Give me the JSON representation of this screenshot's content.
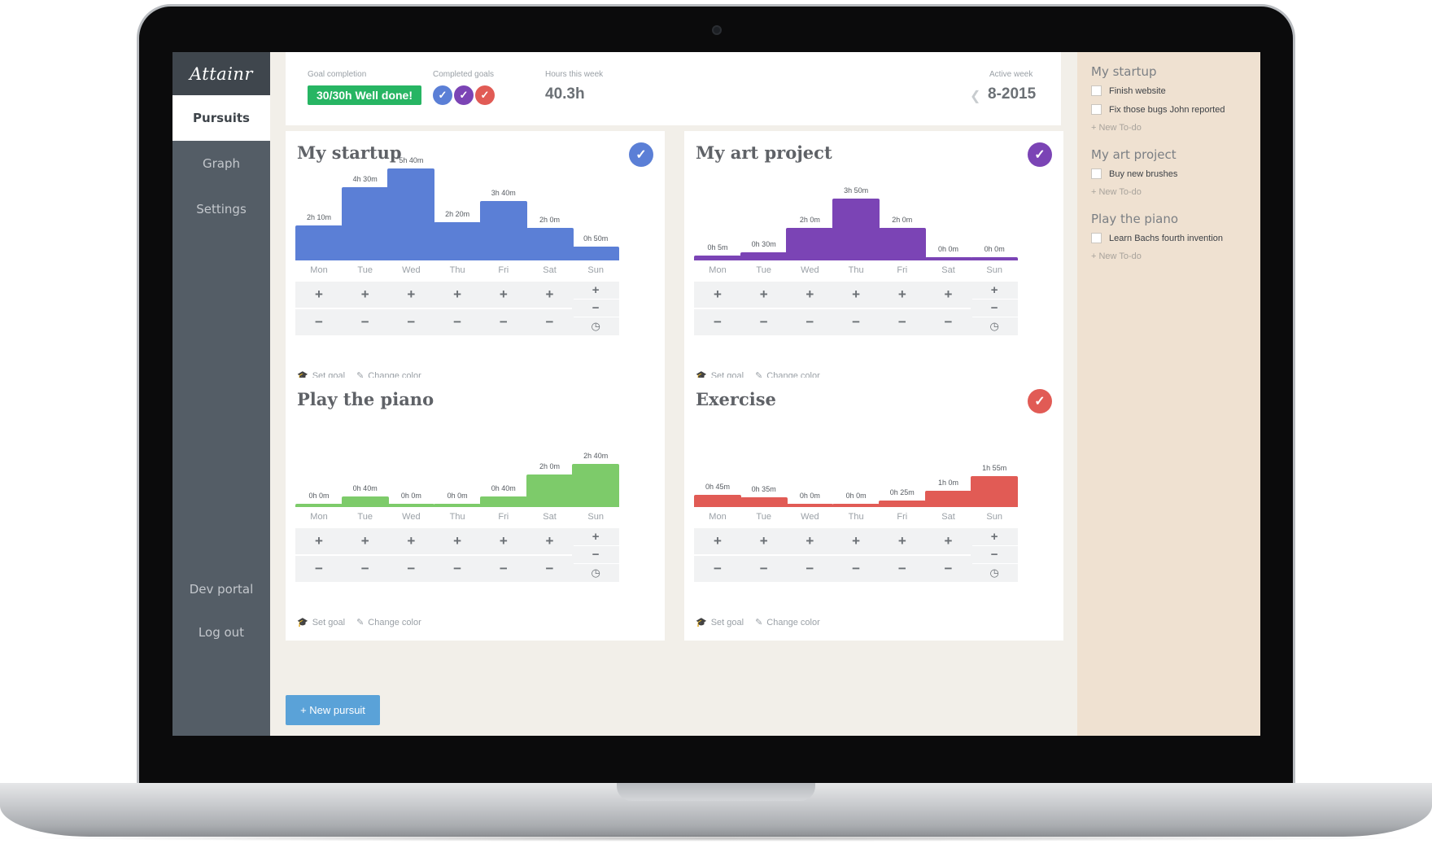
{
  "app": {
    "logo": "Attainr"
  },
  "sidebar": {
    "items": [
      {
        "label": "Pursuits",
        "active": true
      },
      {
        "label": "Graph",
        "active": false
      },
      {
        "label": "Settings",
        "active": false
      }
    ],
    "bottom": [
      {
        "label": "Dev portal"
      },
      {
        "label": "Log out"
      }
    ]
  },
  "header": {
    "goal_label": "Goal completion",
    "goal_badge": "30/30h Well done!",
    "completed_label": "Completed goals",
    "completed_colors": [
      "#5b7fd6",
      "#7b44b5",
      "#e15b55"
    ],
    "hours_label": "Hours this week",
    "hours_value": "40.3h",
    "week_label": "Active week",
    "week_value": "8-2015",
    "week_prev_icon": "chevron-left-icon"
  },
  "pursuits": [
    {
      "title": "My startup",
      "color": "#5b7fd6",
      "completed": true,
      "days": [
        "Mon",
        "Tue",
        "Wed",
        "Thu",
        "Fri",
        "Sat",
        "Sun"
      ],
      "labels": [
        "2h 10m",
        "4h 30m",
        "5h 40m",
        "2h 20m",
        "3h 40m",
        "2h 0m",
        "0h 50m"
      ],
      "minutes": [
        130,
        270,
        340,
        140,
        220,
        120,
        50
      ]
    },
    {
      "title": "My art project",
      "color": "#7b44b5",
      "completed": true,
      "days": [
        "Mon",
        "Tue",
        "Wed",
        "Thu",
        "Fri",
        "Sat",
        "Sun"
      ],
      "labels": [
        "0h 5m",
        "0h 30m",
        "2h 0m",
        "3h 50m",
        "2h 0m",
        "0h 0m",
        "0h 0m"
      ],
      "minutes": [
        5,
        30,
        120,
        230,
        120,
        0,
        0
      ]
    },
    {
      "title": "Play the piano",
      "color": "#7dcb6a",
      "completed": false,
      "days": [
        "Mon",
        "Tue",
        "Wed",
        "Thu",
        "Fri",
        "Sat",
        "Sun"
      ],
      "labels": [
        "0h 0m",
        "0h 40m",
        "0h 0m",
        "0h 0m",
        "0h 40m",
        "2h 0m",
        "2h 40m"
      ],
      "minutes": [
        0,
        40,
        0,
        0,
        40,
        120,
        160
      ]
    },
    {
      "title": "Exercise",
      "color": "#e15b55",
      "completed": true,
      "days": [
        "Mon",
        "Tue",
        "Wed",
        "Thu",
        "Fri",
        "Sat",
        "Sun"
      ],
      "labels": [
        "0h 45m",
        "0h 35m",
        "0h 0m",
        "0h 0m",
        "0h 25m",
        "1h 0m",
        "1h 55m"
      ],
      "minutes": [
        45,
        35,
        0,
        0,
        25,
        60,
        115
      ]
    }
  ],
  "card_actions": {
    "set_goal": "Set goal",
    "change_color": "Change color",
    "plus": "+",
    "minus": "−",
    "timer_icon": "◷"
  },
  "new_pursuit": "+ New pursuit",
  "todos": [
    {
      "title": "My startup",
      "items": [
        "Finish website",
        "Fix those bugs John reported"
      ],
      "new_label": "+ New To-do"
    },
    {
      "title": "My art project",
      "items": [
        "Buy new brushes"
      ],
      "new_label": "+ New To-do"
    },
    {
      "title": "Play the piano",
      "items": [
        "Learn Bachs fourth invention"
      ],
      "new_label": "+ New To-do"
    }
  ]
}
